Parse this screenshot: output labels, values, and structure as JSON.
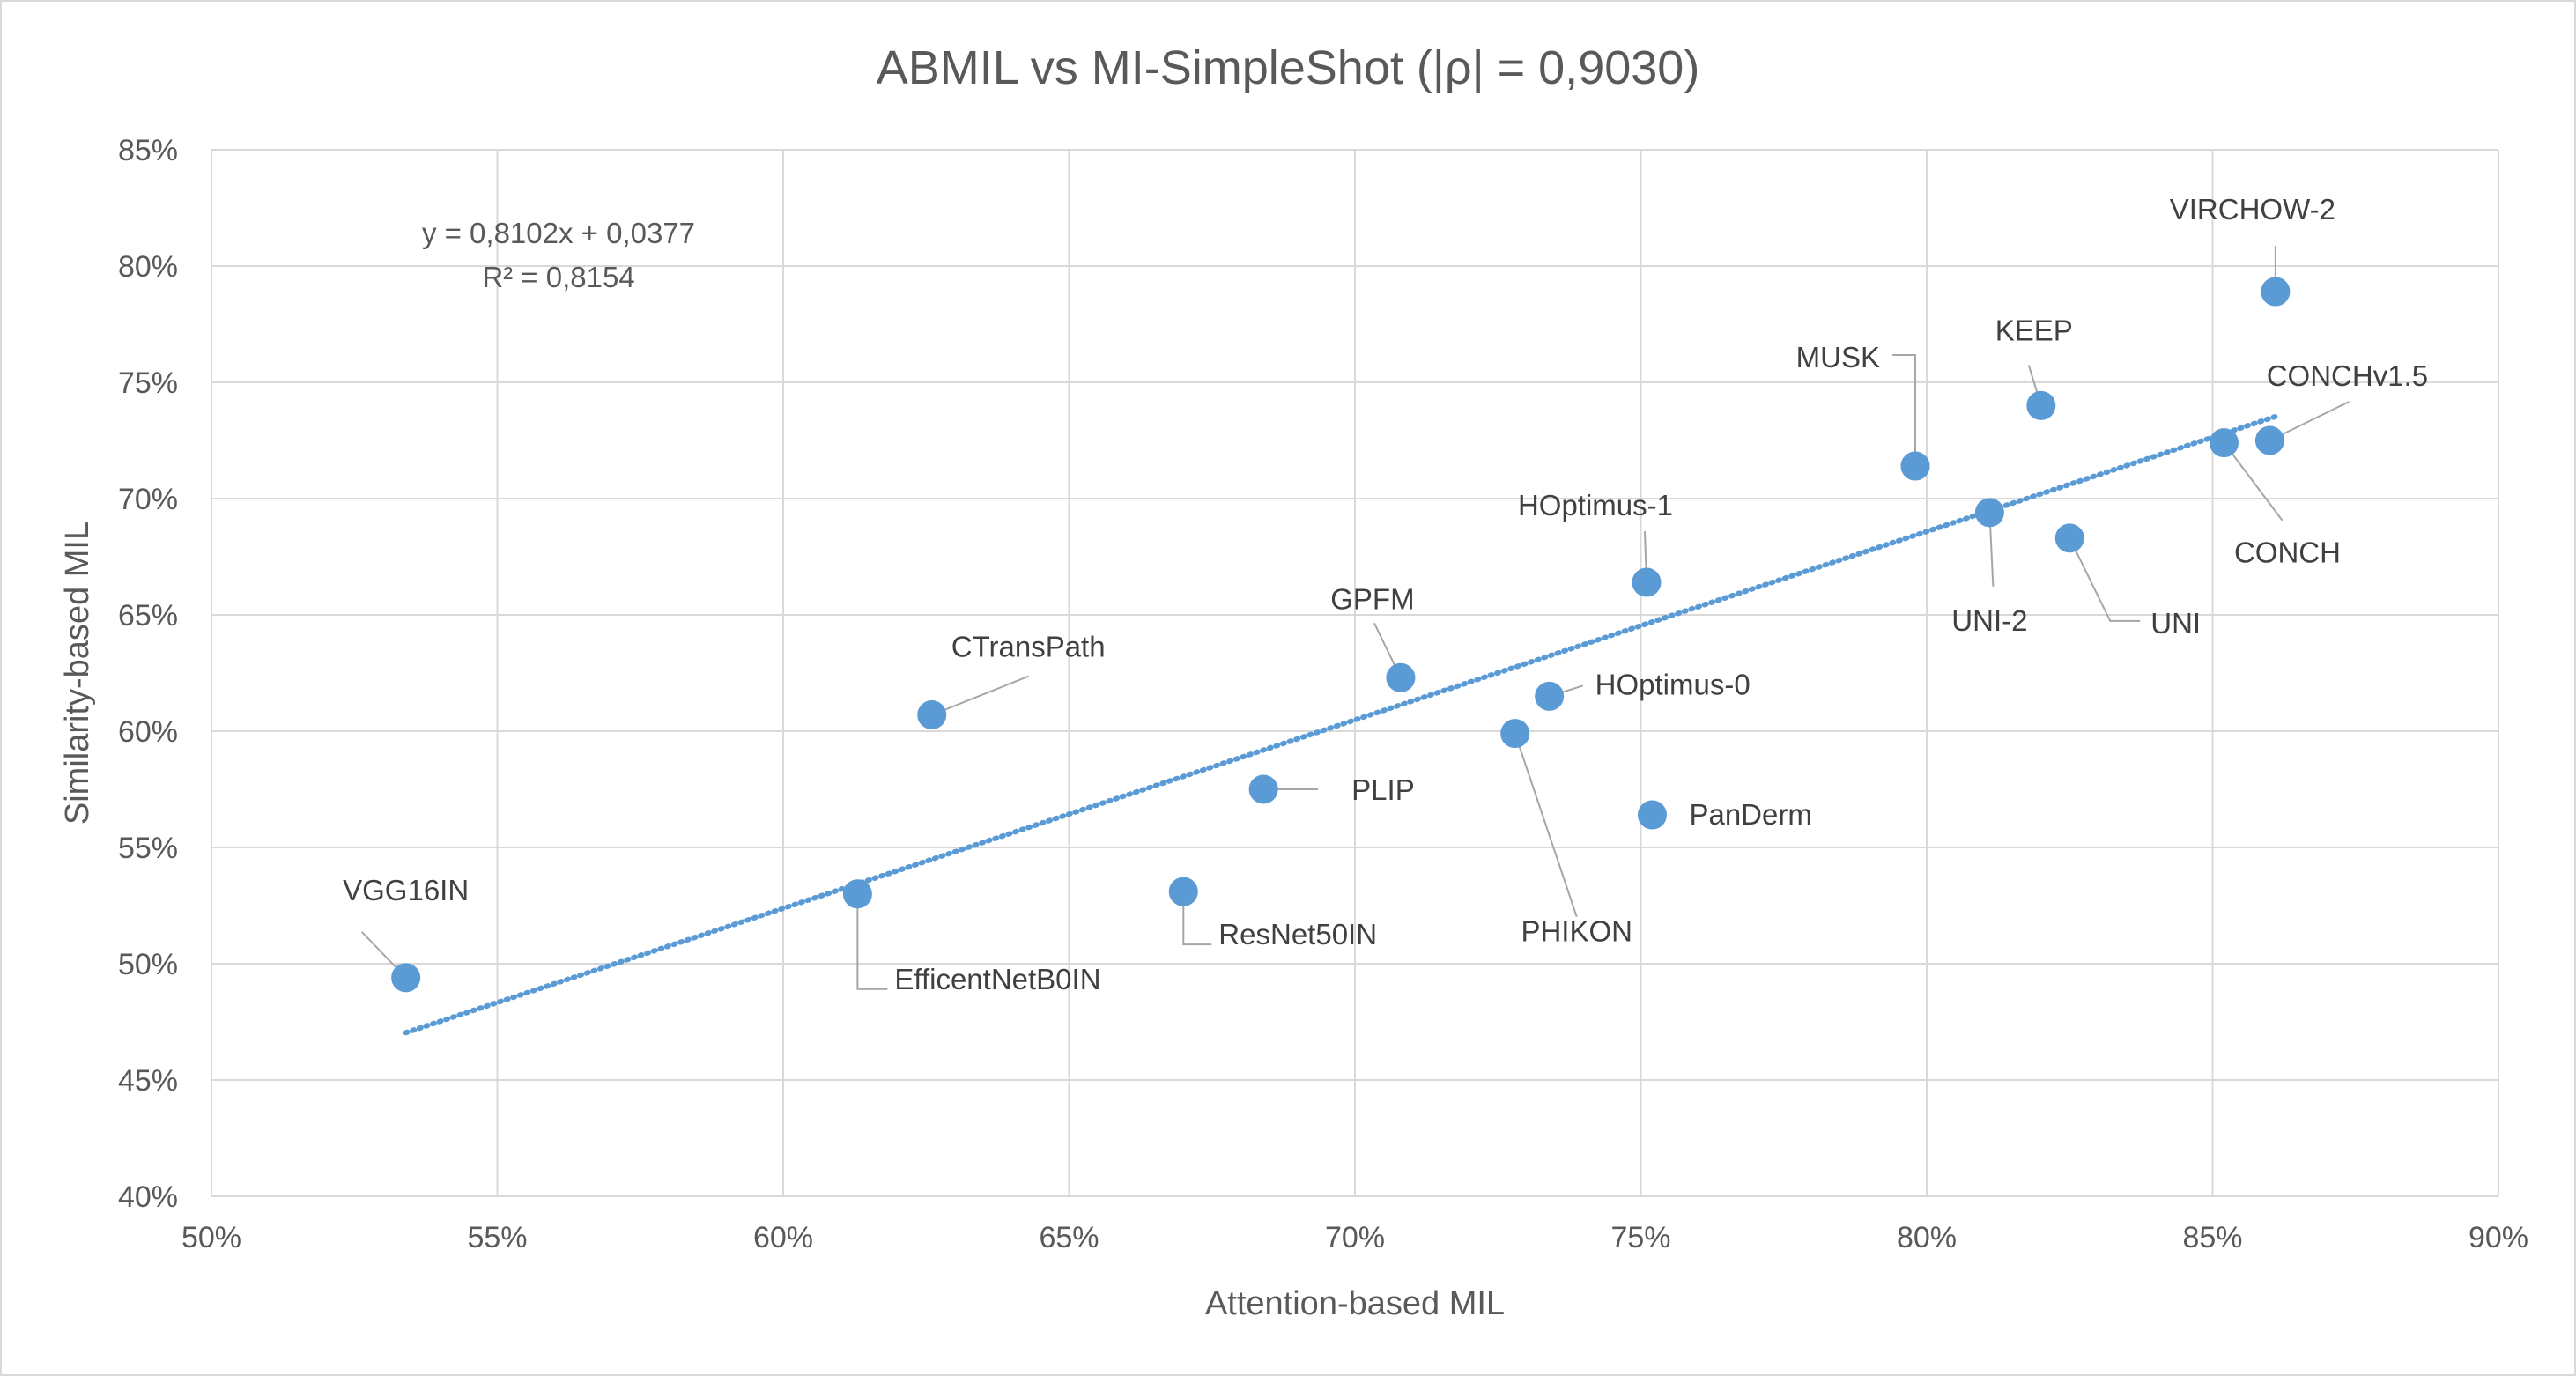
{
  "chart_data": {
    "type": "scatter",
    "title": "ABMIL vs MI-SimpleShot (|ρ| = 0,9030)",
    "xlabel": "Attention-based MIL",
    "ylabel": "Similarity-based MIL",
    "xlim": [
      0.5,
      0.9
    ],
    "ylim": [
      0.4,
      0.85
    ],
    "x_ticks": [
      {
        "value": 0.5,
        "label": "50%"
      },
      {
        "value": 0.55,
        "label": "55%"
      },
      {
        "value": 0.6,
        "label": "60%"
      },
      {
        "value": 0.65,
        "label": "65%"
      },
      {
        "value": 0.7,
        "label": "70%"
      },
      {
        "value": 0.75,
        "label": "75%"
      },
      {
        "value": 0.8,
        "label": "80%"
      },
      {
        "value": 0.85,
        "label": "85%"
      },
      {
        "value": 0.9,
        "label": "90%"
      }
    ],
    "y_ticks": [
      {
        "value": 0.4,
        "label": "40%"
      },
      {
        "value": 0.45,
        "label": "45%"
      },
      {
        "value": 0.5,
        "label": "50%"
      },
      {
        "value": 0.55,
        "label": "55%"
      },
      {
        "value": 0.6,
        "label": "60%"
      },
      {
        "value": 0.65,
        "label": "65%"
      },
      {
        "value": 0.7,
        "label": "70%"
      },
      {
        "value": 0.75,
        "label": "75%"
      },
      {
        "value": 0.8,
        "label": "80%"
      },
      {
        "value": 0.85,
        "label": "85%"
      }
    ],
    "grid": true,
    "legend": "none",
    "marker_color": "#5B9BD5",
    "trendline": {
      "type": "linear",
      "style": "dotted",
      "color": "#5B9BD5",
      "equation": "y = 0,8102x + 0,0377",
      "r_squared": "R² = 0,8154",
      "x_range": [
        0.534,
        0.861
      ],
      "slope": 0.8102,
      "intercept": 0.0377
    },
    "points": [
      {
        "name": "VGG16IN",
        "x": 0.534,
        "y": 0.494
      },
      {
        "name": "EfficentNetB0IN",
        "x": 0.613,
        "y": 0.53
      },
      {
        "name": "CTransPath",
        "x": 0.626,
        "y": 0.607
      },
      {
        "name": "ResNet50IN",
        "x": 0.67,
        "y": 0.531
      },
      {
        "name": "PLIP",
        "x": 0.684,
        "y": 0.575
      },
      {
        "name": "GPFM",
        "x": 0.708,
        "y": 0.623
      },
      {
        "name": "PHIKON",
        "x": 0.728,
        "y": 0.599
      },
      {
        "name": "HOptimus-0",
        "x": 0.734,
        "y": 0.615
      },
      {
        "name": "HOptimus-1",
        "x": 0.751,
        "y": 0.664
      },
      {
        "name": "PanDerm",
        "x": 0.752,
        "y": 0.564
      },
      {
        "name": "MUSK",
        "x": 0.798,
        "y": 0.714
      },
      {
        "name": "UNI-2",
        "x": 0.811,
        "y": 0.694
      },
      {
        "name": "KEEP",
        "x": 0.82,
        "y": 0.74
      },
      {
        "name": "UNI",
        "x": 0.825,
        "y": 0.683
      },
      {
        "name": "CONCH",
        "x": 0.852,
        "y": 0.724
      },
      {
        "name": "CONCHv1.5",
        "x": 0.86,
        "y": 0.725
      },
      {
        "name": "VIRCHOW-2",
        "x": 0.861,
        "y": 0.789
      }
    ]
  }
}
